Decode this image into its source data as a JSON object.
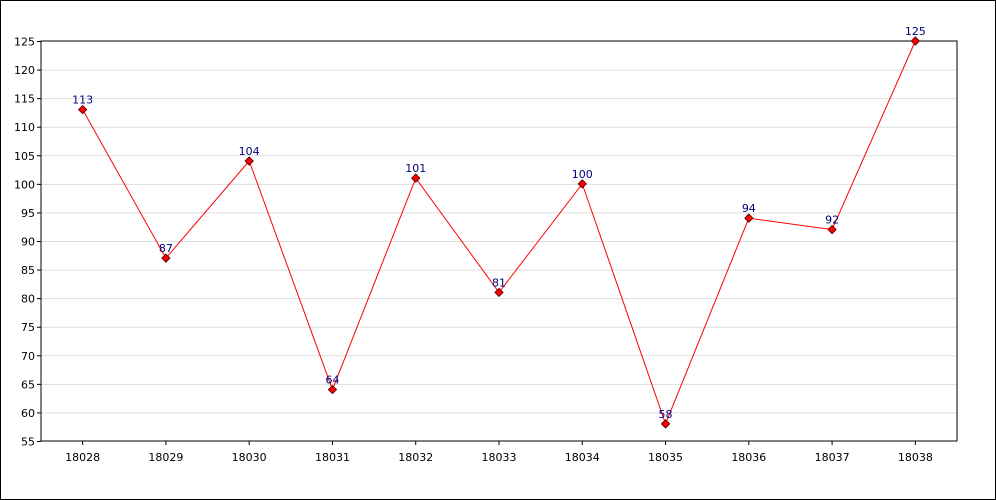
{
  "chart_data": {
    "type": "line",
    "title": "",
    "xlabel": "",
    "ylabel": "",
    "categories": [
      "18028",
      "18029",
      "18030",
      "18031",
      "18032",
      "18033",
      "18034",
      "18035",
      "18036",
      "18037",
      "18038"
    ],
    "series": [
      {
        "values": [
          113,
          87,
          104,
          64,
          101,
          81,
          100,
          58,
          94,
          92,
          125
        ],
        "color": "#ff0000",
        "marker": "diamond",
        "marker_fill": "#ff0000",
        "marker_stroke": "#660000",
        "label_color": "#000080"
      }
    ],
    "ylim": [
      55,
      125
    ],
    "yticks": [
      55,
      60,
      65,
      70,
      75,
      80,
      85,
      90,
      95,
      100,
      105,
      110,
      115,
      120,
      125
    ],
    "grid": true,
    "grid_color": "#dddddd",
    "data_labels": true,
    "legend": "none"
  }
}
